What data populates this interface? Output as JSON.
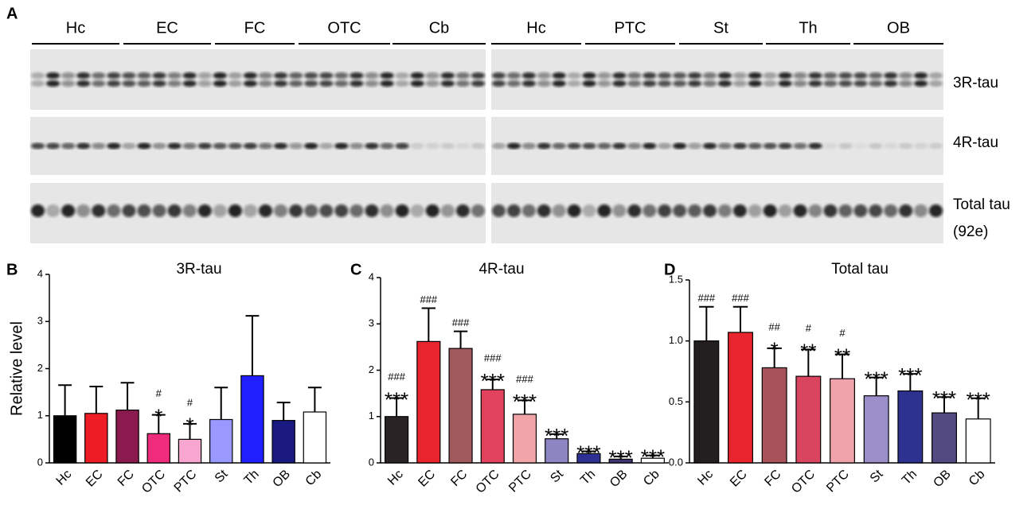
{
  "panel_labels": [
    "A",
    "B",
    "C",
    "D"
  ],
  "blot": {
    "left_groups": [
      "Hc",
      "EC",
      "FC",
      "OTC",
      "Cb"
    ],
    "right_groups": [
      "Hc",
      "PTC",
      "St",
      "Th",
      "OB"
    ],
    "rows": [
      {
        "label": "3R-tau"
      },
      {
        "label": "4R-tau"
      },
      {
        "label": "Total tau",
        "sublabel": "(92e)"
      }
    ]
  },
  "chart_data": [
    {
      "type": "bar",
      "title": "3R-tau",
      "ylabel": "Relative level",
      "categories": [
        "Hc",
        "EC",
        "FC",
        "OTC",
        "PTC",
        "St",
        "Th",
        "OB",
        "Cb"
      ],
      "values": [
        1.0,
        1.05,
        1.12,
        0.62,
        0.5,
        0.92,
        1.85,
        0.9,
        1.08
      ],
      "errors": [
        0.65,
        0.57,
        0.58,
        0.4,
        0.33,
        0.68,
        1.27,
        0.38,
        0.52
      ],
      "colors": [
        "#000000",
        "#ee1c25",
        "#8b1a4f",
        "#ef2b7c",
        "#f7a6d0",
        "#9999ff",
        "#1f1fff",
        "#1a1a80",
        "#ffffff"
      ],
      "annotations": [
        [],
        [],
        [],
        [
          "#",
          "*"
        ],
        [
          "#",
          "*"
        ],
        [],
        [],
        [],
        []
      ],
      "ylim": [
        0,
        4
      ],
      "yticks": [
        0,
        1,
        2,
        3,
        4
      ]
    },
    {
      "type": "bar",
      "title": "4R-tau",
      "categories": [
        "Hc",
        "EC",
        "FC",
        "OTC",
        "PTC",
        "St",
        "Th",
        "OB",
        "Cb"
      ],
      "values": [
        1.0,
        2.62,
        2.47,
        1.58,
        1.05,
        0.52,
        0.2,
        0.08,
        0.1
      ],
      "errors": [
        0.4,
        0.72,
        0.37,
        0.22,
        0.3,
        0.1,
        0.05,
        0.06,
        0.06
      ],
      "colors": [
        "#2a2326",
        "#e8242f",
        "#a05a5e",
        "#e2435c",
        "#f2a5a8",
        "#8b85c2",
        "#2e3192",
        "#3d3470",
        "#ffffff"
      ],
      "annotations": [
        [
          "###",
          "***"
        ],
        [
          "###"
        ],
        [
          "###"
        ],
        [
          "###",
          "***"
        ],
        [
          "###",
          "***"
        ],
        [
          "***"
        ],
        [
          "***"
        ],
        [
          "***"
        ],
        [
          "***"
        ]
      ],
      "ylim": [
        0,
        4
      ],
      "yticks": [
        0,
        1,
        2,
        3,
        4
      ]
    },
    {
      "type": "bar",
      "title": "Total tau",
      "categories": [
        "Hc",
        "EC",
        "FC",
        "OTC",
        "PTC",
        "St",
        "Th",
        "OB",
        "Cb"
      ],
      "values": [
        1.0,
        1.07,
        0.78,
        0.71,
        0.69,
        0.55,
        0.59,
        0.41,
        0.36
      ],
      "errors": [
        0.28,
        0.21,
        0.16,
        0.22,
        0.2,
        0.15,
        0.14,
        0.13,
        0.17
      ],
      "colors": [
        "#231f20",
        "#e8242f",
        "#a8525a",
        "#d9455f",
        "#f0a3aa",
        "#9b8fc9",
        "#2d3190",
        "#524a80",
        "#ffffff"
      ],
      "annotations": [
        [
          "###"
        ],
        [
          "###"
        ],
        [
          "##",
          "*"
        ],
        [
          "#",
          "**"
        ],
        [
          "#",
          "**"
        ],
        [
          "***"
        ],
        [
          "***"
        ],
        [
          "***"
        ],
        [
          "***"
        ]
      ],
      "ylim": [
        0,
        1.5
      ],
      "yticks": [
        {
          "value": 0,
          "label": "0.0"
        },
        0.5,
        {
          "value": 1,
          "label": "1.0"
        },
        {
          "value": 1.5,
          "label": "1.5"
        }
      ]
    }
  ]
}
